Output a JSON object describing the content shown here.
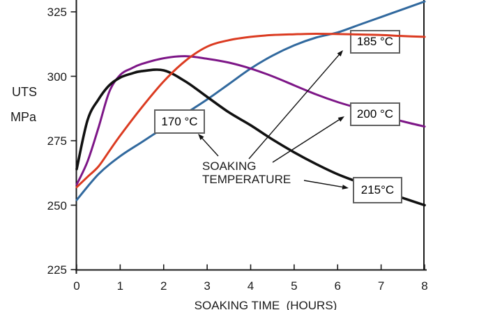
{
  "chart": {
    "y_axis_label_1": "UTS",
    "y_axis_label_2": "MPa",
    "x_axis_title": "SOAKING TIME  (HOURS)",
    "annotation_line1": "SOAKING",
    "annotation_line2": "TEMPERATURE"
  },
  "chart_data": {
    "type": "line",
    "title": "",
    "xlabel": "SOAKING TIME (HOURS)",
    "ylabel": "UTS MPa",
    "xlim": [
      0,
      8
    ],
    "ylim": [
      225,
      330
    ],
    "x_ticks": [
      0,
      1,
      2,
      3,
      4,
      5,
      6,
      7,
      8
    ],
    "y_ticks": [
      225,
      250,
      275,
      300,
      325
    ],
    "grid": false,
    "legend_style": "callout boxes pointed to by arrows from the SOAKING TEMPERATURE annotation",
    "axis_color": "#1a1a1a",
    "series": [
      {
        "name": "170 °C",
        "color": "#31699E",
        "points": [
          [
            0,
            252
          ],
          [
            0.5,
            262
          ],
          [
            1,
            269
          ],
          [
            1.5,
            274.5
          ],
          [
            2,
            280
          ],
          [
            2.5,
            285.5
          ],
          [
            3,
            291
          ],
          [
            3.5,
            297
          ],
          [
            4,
            303
          ],
          [
            4.5,
            308
          ],
          [
            5,
            312
          ],
          [
            5.5,
            315
          ],
          [
            6,
            317
          ],
          [
            6.5,
            320
          ],
          [
            7,
            323
          ],
          [
            7.5,
            326
          ],
          [
            8,
            329
          ]
        ]
      },
      {
        "name": "185 °C",
        "color": "#DB3B21",
        "points": [
          [
            0,
            257
          ],
          [
            0.25,
            261
          ],
          [
            0.5,
            265
          ],
          [
            0.75,
            271
          ],
          [
            1,
            277
          ],
          [
            1.5,
            288
          ],
          [
            2,
            298
          ],
          [
            2.5,
            306
          ],
          [
            3,
            311.5
          ],
          [
            3.5,
            314
          ],
          [
            4,
            315.3
          ],
          [
            4.5,
            316
          ],
          [
            5,
            316.3
          ],
          [
            5.5,
            316.5
          ],
          [
            6,
            316.4
          ],
          [
            6.5,
            316.2
          ],
          [
            7,
            316
          ],
          [
            7.5,
            315.6
          ],
          [
            8,
            315.3
          ]
        ]
      },
      {
        "name": "200 °C",
        "color": "#7D1687",
        "points": [
          [
            0,
            258
          ],
          [
            0.25,
            267
          ],
          [
            0.5,
            280
          ],
          [
            0.75,
            294
          ],
          [
            1,
            300.5
          ],
          [
            1.25,
            303
          ],
          [
            1.5,
            304.8
          ],
          [
            2,
            307
          ],
          [
            2.5,
            307.8
          ],
          [
            3,
            306.8
          ],
          [
            3.5,
            305.3
          ],
          [
            4,
            303
          ],
          [
            4.5,
            300
          ],
          [
            5,
            296.5
          ],
          [
            5.5,
            293
          ],
          [
            6,
            290
          ],
          [
            6.5,
            287.5
          ],
          [
            7,
            285
          ],
          [
            7.5,
            282.5
          ],
          [
            8,
            280.5
          ]
        ]
      },
      {
        "name": "215 °C",
        "color": "#111111",
        "points": [
          [
            0,
            264
          ],
          [
            0.25,
            283
          ],
          [
            0.5,
            291
          ],
          [
            0.75,
            296.5
          ],
          [
            1,
            299.5
          ],
          [
            1.25,
            301
          ],
          [
            1.5,
            302
          ],
          [
            2,
            302.3
          ],
          [
            2.5,
            298
          ],
          [
            3,
            292
          ],
          [
            3.5,
            286
          ],
          [
            4,
            281
          ],
          [
            4.5,
            275.5
          ],
          [
            5,
            270.5
          ],
          [
            5.5,
            266
          ],
          [
            6,
            262
          ],
          [
            6.5,
            258.8
          ],
          [
            7,
            255.8
          ],
          [
            7.5,
            252.8
          ],
          [
            8,
            250
          ]
        ]
      }
    ],
    "callouts": [
      {
        "label": "170 °C",
        "series": "170 °C"
      },
      {
        "label": "185 °C",
        "series": "185 °C"
      },
      {
        "label": "200 °C",
        "series": "200 °C"
      },
      {
        "label": "215°C",
        "series": "215 °C"
      }
    ]
  }
}
